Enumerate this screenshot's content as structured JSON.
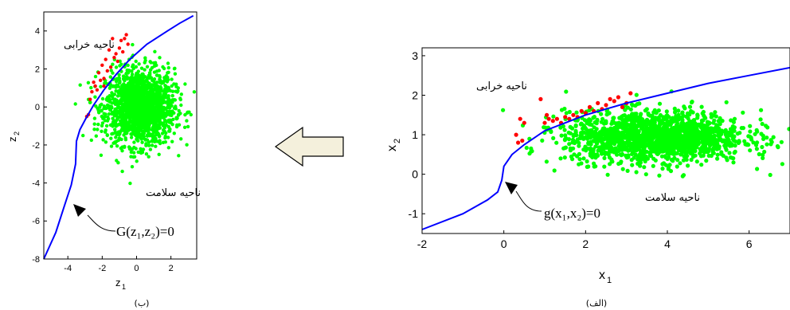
{
  "chart_data": [
    {
      "type": "scatter",
      "panel_label": "(ب)",
      "xlabel": "z",
      "xlabel_sub": "1",
      "ylabel": "z",
      "ylabel_sub": "2",
      "xlim": [
        -5.4,
        3.5
      ],
      "ylim": [
        -8,
        5
      ],
      "xticks": [
        -4,
        -2,
        0,
        2
      ],
      "yticks": [
        -8,
        -6,
        -4,
        -2,
        0,
        2,
        4
      ],
      "region_failure": "ناحیه خرابی",
      "region_safe": "ناحیه سلامت",
      "limit_state_label": "G(z₁,z₂)=0",
      "safe_cloud": {
        "center": [
          0.2,
          0
        ],
        "spread": [
          1.0,
          1.0
        ],
        "count": 1700
      },
      "limit_state_curve": [
        [
          -5.4,
          -8
        ],
        [
          -4.7,
          -6.6
        ],
        [
          -4.2,
          -5.2
        ],
        [
          -3.8,
          -4.1
        ],
        [
          -3.55,
          -3.0
        ],
        [
          -3.5,
          -1.8
        ],
        [
          -3.3,
          -1.2
        ],
        [
          -2.95,
          -0.6
        ],
        [
          -2.5,
          0.1
        ],
        [
          -1.9,
          0.9
        ],
        [
          -1.2,
          1.7
        ],
        [
          -0.4,
          2.5
        ],
        [
          0.6,
          3.3
        ],
        [
          1.8,
          4.0
        ],
        [
          2.5,
          4.4
        ],
        [
          3.3,
          4.8
        ]
      ],
      "failure_points": [
        [
          -2.7,
          0.4
        ],
        [
          -2.6,
          0.8
        ],
        [
          -2.5,
          1.3
        ],
        [
          -2.4,
          1.1
        ],
        [
          -2.2,
          1.8
        ],
        [
          -2.0,
          2.2
        ],
        [
          -1.9,
          1.5
        ],
        [
          -1.8,
          2.5
        ],
        [
          -1.6,
          3.0
        ],
        [
          -1.5,
          2.1
        ],
        [
          -1.4,
          3.6
        ],
        [
          -1.2,
          2.8
        ],
        [
          -1.1,
          2.4
        ],
        [
          -1.0,
          3.1
        ],
        [
          -0.9,
          3.5
        ],
        [
          -0.8,
          2.9
        ],
        [
          -0.6,
          3.8
        ],
        [
          -0.5,
          3.3
        ],
        [
          -2.8,
          -0.4
        ],
        [
          -2.9,
          -0.5
        ],
        [
          -2.3,
          0.9
        ],
        [
          -1.7,
          1.9
        ],
        [
          -1.3,
          2.6
        ],
        [
          -0.7,
          3.6
        ],
        [
          -1.9,
          1.1
        ],
        [
          -2.1,
          1.4
        ]
      ],
      "curve_color": "#0000ff",
      "safe_color": "#00ff00",
      "failure_color": "#ff0000"
    },
    {
      "type": "scatter",
      "panel_label": "(الف)",
      "xlabel": "x",
      "xlabel_sub": "1",
      "ylabel": "x",
      "ylabel_sub": "2",
      "xlim": [
        -2,
        7
      ],
      "ylim": [
        -1.5,
        3.2
      ],
      "xticks": [
        -2,
        0,
        2,
        4,
        6
      ],
      "yticks": [
        -1,
        0,
        1,
        2,
        3
      ],
      "region_failure": "ناحیه خرابی",
      "region_safe": "ناحیه سلامت",
      "limit_state_label": "g(x₁,x₂)=0",
      "safe_cloud": {
        "center": [
          3.7,
          0.95
        ],
        "spread": [
          1.1,
          0.32
        ],
        "count": 1700
      },
      "limit_state_curve": [
        [
          -2,
          -1.4
        ],
        [
          -1.0,
          -1.0
        ],
        [
          -0.4,
          -0.65
        ],
        [
          -0.15,
          -0.45
        ],
        [
          -0.05,
          -0.15
        ],
        [
          0.0,
          0.2
        ],
        [
          0.2,
          0.5
        ],
        [
          0.5,
          0.75
        ],
        [
          1.0,
          1.1
        ],
        [
          1.5,
          1.3
        ],
        [
          2.0,
          1.5
        ],
        [
          2.5,
          1.65
        ],
        [
          3.0,
          1.8
        ],
        [
          4.0,
          2.05
        ],
        [
          5.0,
          2.3
        ],
        [
          6.0,
          2.5
        ],
        [
          7.0,
          2.7
        ]
      ],
      "failure_points": [
        [
          0.3,
          1.0
        ],
        [
          0.4,
          1.4
        ],
        [
          0.45,
          0.85
        ],
        [
          0.5,
          1.3
        ],
        [
          0.9,
          1.9
        ],
        [
          1.0,
          1.3
        ],
        [
          1.1,
          1.4
        ],
        [
          1.2,
          1.35
        ],
        [
          1.3,
          1.4
        ],
        [
          1.4,
          1.3
        ],
        [
          1.5,
          1.45
        ],
        [
          1.6,
          1.4
        ],
        [
          1.7,
          1.5
        ],
        [
          1.8,
          1.45
        ],
        [
          1.9,
          1.6
        ],
        [
          2.0,
          1.55
        ],
        [
          2.1,
          1.7
        ],
        [
          2.2,
          1.6
        ],
        [
          2.3,
          1.8
        ],
        [
          2.5,
          1.75
        ],
        [
          2.6,
          1.9
        ],
        [
          2.7,
          1.85
        ],
        [
          2.8,
          1.95
        ],
        [
          3.0,
          1.8
        ],
        [
          3.1,
          2.05
        ],
        [
          2.9,
          1.7
        ],
        [
          1.05,
          1.5
        ],
        [
          2.4,
          1.65
        ],
        [
          0.35,
          0.8
        ]
      ],
      "curve_color": "#0000ff",
      "safe_color": "#00ff00",
      "failure_color": "#ff0000"
    }
  ],
  "arrow": {
    "direction": "left",
    "fill": "#f4f0dc",
    "stroke": "#000000"
  }
}
